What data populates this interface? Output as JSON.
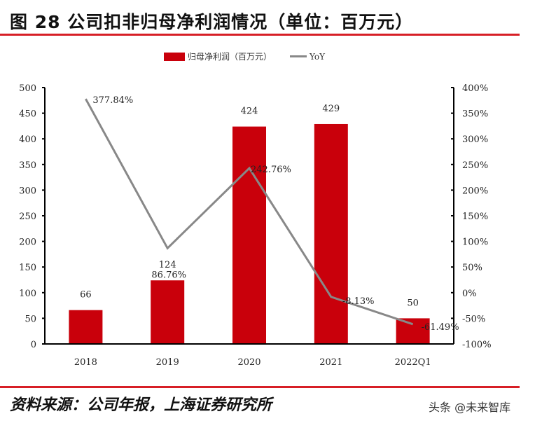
{
  "header": {
    "title": "图 28 公司扣非归母净利润情况（单位：百万元）"
  },
  "footer": {
    "source": "资料来源：公司年报，上海证券研究所",
    "watermark": "头条 @未来智库"
  },
  "colors": {
    "bar": "#c9000b",
    "line": "#888888",
    "rule": "#d71f26"
  },
  "chart_data": {
    "type": "bar",
    "title": "公司扣非归母净利润情况（单位：百万元）",
    "categories": [
      "2018",
      "2019",
      "2020",
      "2021",
      "2022Q1"
    ],
    "series": [
      {
        "name": "归母净利润（百万元）",
        "type": "bar",
        "axis": "left",
        "values": [
          66,
          124,
          424,
          429,
          50
        ],
        "labels": [
          "66",
          "124",
          "424",
          "429",
          "50"
        ]
      },
      {
        "name": "YoY",
        "type": "line",
        "axis": "right",
        "values": [
          377.84,
          86.76,
          242.76,
          -8.13,
          -61.49
        ],
        "labels": [
          "377.84%",
          "86.76%",
          "242.76%",
          "-8.13%",
          "-61.49%"
        ]
      }
    ],
    "left_axis": {
      "ylim": [
        0,
        500
      ],
      "ticks": [
        "0",
        "50",
        "100",
        "150",
        "200",
        "250",
        "300",
        "350",
        "400",
        "450",
        "500"
      ]
    },
    "right_axis": {
      "ylim": [
        -100,
        400
      ],
      "ticks": [
        "-100%",
        "-50%",
        "0%",
        "50%",
        "100%",
        "150%",
        "200%",
        "250%",
        "300%",
        "350%",
        "400%"
      ]
    },
    "legend": {
      "position": "top",
      "entries": [
        "归母净利润（百万元）",
        "YoY"
      ]
    },
    "grid": false
  }
}
